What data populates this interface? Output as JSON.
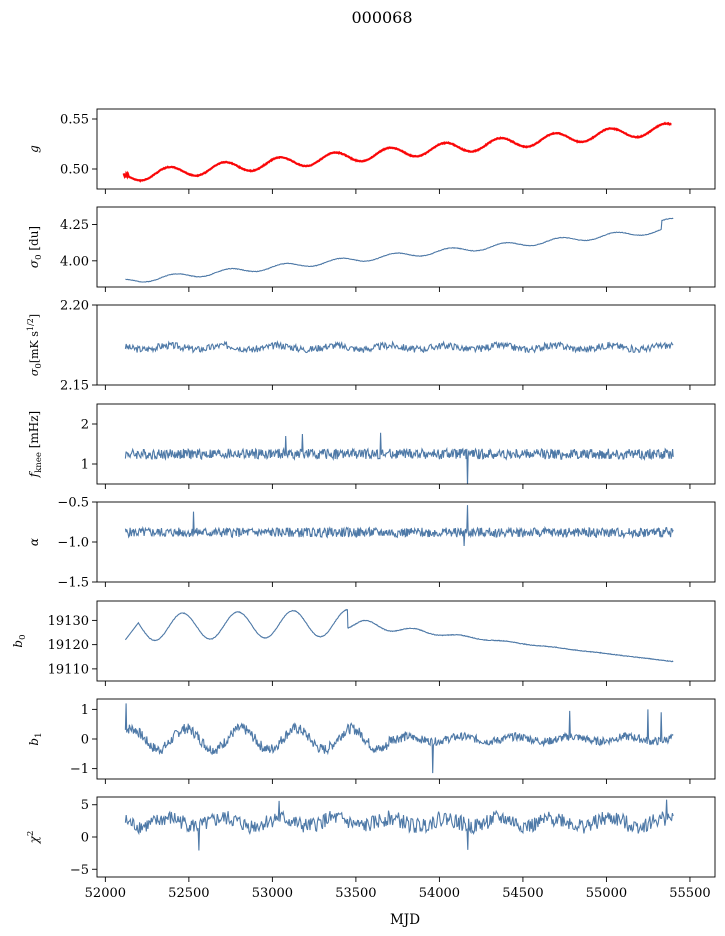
{
  "figure": {
    "title": "000068",
    "xlabel": "MJD"
  },
  "chart_data": [
    {
      "type": "line",
      "ylabel": "g",
      "ylabel_tex": "g",
      "xlim": [
        51950,
        55650
      ],
      "ylim": [
        0.48,
        0.56
      ],
      "yticks": [
        0.5,
        0.55
      ],
      "ytick_labels": [
        "0.50",
        "0.55"
      ],
      "generator": {
        "kind": "g",
        "start": 52110,
        "end": 55390,
        "step": 3,
        "base": 0.4925,
        "slope": 1.46e-05,
        "amp": 0.0055,
        "period": 330,
        "noise": 0.0004,
        "seed": 1
      },
      "series": [
        {
          "color": "#4e79a7",
          "overlay": false
        },
        {
          "color": "#ff0000",
          "overlay": true
        }
      ]
    },
    {
      "type": "line",
      "ylabel": "σ0 [du]",
      "ylabel_tex": "sigma0_du",
      "xlim": [
        51950,
        55650
      ],
      "ylim": [
        3.82,
        4.37
      ],
      "yticks": [
        4.0,
        4.25
      ],
      "ytick_labels": [
        "4.00",
        "4.25"
      ],
      "generator": {
        "kind": "sigma",
        "start": 52120,
        "end": 55400,
        "step": 4,
        "base": 3.86,
        "slope": 0.000108,
        "amp": 0.018,
        "period": 330,
        "noise": 0.004,
        "seed": 2
      },
      "series": [
        {
          "color": "#4e79a7"
        }
      ]
    },
    {
      "type": "line",
      "ylabel": "σ0[mK s^1/2]",
      "ylabel_tex": "sigma0_mk",
      "xlim": [
        51950,
        55650
      ],
      "ylim": [
        2.15,
        2.2
      ],
      "yticks": [
        2.15,
        2.2
      ],
      "ytick_labels": [
        "2.15",
        "2.20"
      ],
      "generator": {
        "kind": "noise",
        "start": 52120,
        "end": 55400,
        "step": 5,
        "base": 2.1735,
        "amp": 0.0012,
        "period": 330,
        "noise": 0.0022,
        "seed": 3
      },
      "series": [
        {
          "color": "#4e79a7"
        }
      ]
    },
    {
      "type": "line",
      "ylabel": "fknee [mHz]",
      "ylabel_tex": "fknee",
      "xlim": [
        51950,
        55650
      ],
      "ylim": [
        0.5,
        2.5
      ],
      "yticks": [
        1,
        2
      ],
      "ytick_labels": [
        "1",
        "2"
      ],
      "generator": {
        "kind": "noise",
        "start": 52120,
        "end": 55400,
        "step": 4,
        "base": 1.25,
        "amp": 0.0,
        "period": 330,
        "noise": 0.13,
        "seed": 4,
        "spikes": [
          [
            53180,
            1.75
          ],
          [
            53650,
            1.78
          ],
          [
            54170,
            0.45
          ],
          [
            53080,
            1.7
          ]
        ]
      },
      "series": [
        {
          "color": "#4e79a7"
        }
      ]
    },
    {
      "type": "line",
      "ylabel": "α",
      "ylabel_tex": "alpha",
      "xlim": [
        51950,
        55650
      ],
      "ylim": [
        -1.5,
        -0.5
      ],
      "yticks": [
        -1.5,
        -1.0,
        -0.5
      ],
      "ytick_labels": [
        "−1.5",
        "−1.0",
        "−0.5"
      ],
      "generator": {
        "kind": "noise",
        "start": 52120,
        "end": 55400,
        "step": 4,
        "base": -0.88,
        "amp": 0.0,
        "period": 330,
        "noise": 0.06,
        "seed": 5,
        "spikes": [
          [
            52530,
            -0.62
          ],
          [
            54170,
            -0.54
          ],
          [
            54150,
            -1.05
          ]
        ]
      },
      "series": [
        {
          "color": "#4e79a7"
        }
      ]
    },
    {
      "type": "line",
      "ylabel": "b0",
      "ylabel_tex": "b0",
      "xlim": [
        51950,
        55650
      ],
      "ylim": [
        19105,
        19138
      ],
      "yticks": [
        19110,
        19120,
        19130
      ],
      "ytick_labels": [
        "19110",
        "19120",
        "19130"
      ],
      "generator": {
        "kind": "b0",
        "start": 52120,
        "end": 55400,
        "step": 3,
        "seed": 6
      },
      "series": [
        {
          "color": "#4e79a7"
        }
      ]
    },
    {
      "type": "line",
      "ylabel": "b1",
      "ylabel_tex": "b1",
      "xlim": [
        51950,
        55650
      ],
      "ylim": [
        -1.35,
        1.35
      ],
      "yticks": [
        -1,
        0,
        1
      ],
      "ytick_labels": [
        "−1",
        "0",
        "1"
      ],
      "generator": {
        "kind": "b1",
        "start": 52120,
        "end": 55400,
        "step": 4,
        "seed": 7,
        "spikes": [
          [
            52125,
            1.2
          ],
          [
            53960,
            -1.15
          ],
          [
            54780,
            0.95
          ],
          [
            55250,
            1.0
          ],
          [
            55330,
            0.9
          ]
        ]
      },
      "series": [
        {
          "color": "#4e79a7"
        }
      ]
    },
    {
      "type": "line",
      "ylabel": "χ²",
      "ylabel_tex": "chi2",
      "xlim": [
        51950,
        55650
      ],
      "ylim": [
        -6.2,
        6.2
      ],
      "yticks": [
        -5,
        0,
        5
      ],
      "ytick_labels": [
        "−5",
        "0",
        "5"
      ],
      "xticks": [
        52000,
        52500,
        53000,
        53500,
        54000,
        54500,
        55000,
        55500
      ],
      "xtick_labels": [
        "52000",
        "52500",
        "53000",
        "53500",
        "54000",
        "54500",
        "55000",
        "55500"
      ],
      "generator": {
        "kind": "noise",
        "start": 52120,
        "end": 55400,
        "step": 5,
        "base": 2.3,
        "amp": 0.6,
        "period": 330,
        "noise": 1.2,
        "seed": 8,
        "spikes": [
          [
            52560,
            -2.1
          ],
          [
            54170,
            -2.0
          ],
          [
            53040,
            5.6
          ],
          [
            55360,
            5.8
          ]
        ]
      },
      "series": [
        {
          "color": "#4e79a7"
        }
      ]
    }
  ]
}
